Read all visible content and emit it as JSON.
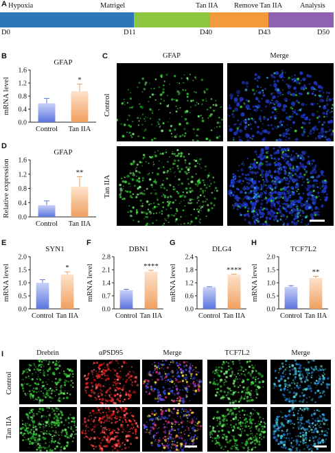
{
  "panels": {
    "A": "A",
    "B": "B",
    "C": "C",
    "D": "D",
    "E": "E",
    "F": "F",
    "G": "G",
    "H": "H",
    "I": "I"
  },
  "timeline": {
    "stages": [
      {
        "label": "Hypoxia",
        "color": "#2f76b8"
      },
      {
        "label": "Matrigel",
        "color": "#8dc63f"
      },
      {
        "label": "Tan IIA",
        "color": "#f39a3c"
      },
      {
        "label": "Remove Tan IIA",
        "color": "#8e62b0"
      },
      {
        "label": "Analysis",
        "color": "#8e62b0"
      }
    ],
    "days": [
      "D0",
      "D11",
      "D40",
      "D43",
      "D50"
    ]
  },
  "panel_c": {
    "col_titles": [
      "GFAP",
      "Merge"
    ],
    "row_labels": [
      "Control",
      "Tan IIA"
    ]
  },
  "panel_i": {
    "col_titles": [
      "Drebrin",
      "αPSD95",
      "Merge",
      "TCF7L2",
      "Merge"
    ],
    "row_labels": [
      "Control",
      "Tan IIA"
    ]
  },
  "colors": {
    "control": "#5b76e0",
    "tan": "#f0a060",
    "control_light": "#c9d0f7",
    "tan_light": "#fde3cc"
  },
  "chart_data": [
    {
      "id": "B",
      "type": "bar",
      "title": "GFAP",
      "categories": [
        "Control",
        "Tan IIA"
      ],
      "values": [
        0.58,
        0.95
      ],
      "errors": [
        0.15,
        0.22
      ],
      "ylabel": "mRNA level",
      "ylim": [
        0,
        1.6
      ],
      "yticks": [
        "0.0",
        "0.4",
        "0.8",
        "1.2",
        "1.6"
      ],
      "yvals": [
        0,
        0.4,
        0.8,
        1.2,
        1.6
      ],
      "significance": "*"
    },
    {
      "id": "D",
      "type": "bar",
      "title": "GFAP",
      "categories": [
        "Control",
        "Tan IIA"
      ],
      "values": [
        0.33,
        0.85
      ],
      "errors": [
        0.12,
        0.28
      ],
      "ylabel": "Relative expression",
      "ylim": [
        0,
        1.6
      ],
      "yticks": [
        "0.0",
        "0.4",
        "0.8",
        "1.2",
        "1.6"
      ],
      "yvals": [
        0,
        0.4,
        0.8,
        1.2,
        1.6
      ],
      "significance": "**"
    },
    {
      "id": "E",
      "type": "bar",
      "title": "SYN1",
      "categories": [
        "Control",
        "Tan IIA"
      ],
      "values": [
        1.0,
        1.32
      ],
      "errors": [
        0.12,
        0.1
      ],
      "ylabel": "mRNA level",
      "ylim": [
        0,
        2.0
      ],
      "yticks": [
        "0.0",
        "0.5",
        "1.0",
        "1.5",
        "2.0"
      ],
      "yvals": [
        0,
        0.5,
        1.0,
        1.5,
        2.0
      ],
      "significance": "*"
    },
    {
      "id": "F",
      "type": "bar",
      "title": "DBN1",
      "categories": [
        "Control",
        "Tan IIA"
      ],
      "values": [
        1.0,
        2.0
      ],
      "errors": [
        0.05,
        0.07
      ],
      "ylabel": "mRNA level",
      "ylim": [
        0,
        2.8
      ],
      "yticks": [
        "0.0",
        "0.7",
        "1.4",
        "2.1",
        "2.8"
      ],
      "yvals": [
        0,
        0.7,
        1.4,
        2.1,
        2.8
      ],
      "significance": "****"
    },
    {
      "id": "G",
      "type": "bar",
      "title": "DLG4",
      "categories": [
        "Control",
        "Tan IIA"
      ],
      "values": [
        1.0,
        1.57
      ],
      "errors": [
        0.02,
        0.03
      ],
      "ylabel": "mRNA level",
      "ylim": [
        0,
        2.4
      ],
      "yticks": [
        "0.0",
        "0.6",
        "1.2",
        "1.8",
        "2.4"
      ],
      "yvals": [
        0,
        0.6,
        1.2,
        1.8,
        2.4
      ],
      "significance": "****"
    },
    {
      "id": "H",
      "type": "bar",
      "title": "TCF7L2",
      "categories": [
        "Control",
        "Tan IIA"
      ],
      "values": [
        0.84,
        1.18
      ],
      "errors": [
        0.05,
        0.07
      ],
      "ylabel": "mRNA level",
      "ylim": [
        0,
        2.0
      ],
      "yticks": [
        "0.0",
        "0.5",
        "1.0",
        "1.5",
        "2.0"
      ],
      "yvals": [
        0,
        0.5,
        1.0,
        1.5,
        2.0
      ],
      "significance": "**"
    }
  ]
}
